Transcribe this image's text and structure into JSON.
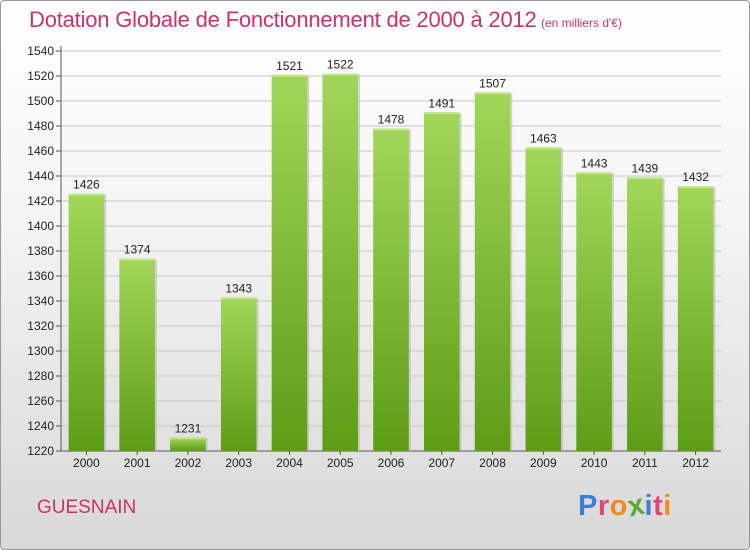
{
  "header": {
    "title": "Dotation Globale de Fonctionnement de 2000 à 2012",
    "unit": "(en milliers d'€)"
  },
  "footer": {
    "place": "GUESNAIN",
    "logo": {
      "letters": [
        "P",
        "r",
        "o",
        "x",
        "i",
        "t",
        "i"
      ],
      "colors": [
        "#3a7fd0",
        "#e0457a",
        "#f08a1c",
        "#59a830",
        "#3a7fd0",
        "#e0457a",
        "#f08a1c"
      ]
    }
  },
  "colors": {
    "text": "#d0306a",
    "bar_light": "#a2d65a",
    "bar_dark": "#5e9c16",
    "grid": "#c8c8c8"
  },
  "chart_data": {
    "type": "bar",
    "title": "Dotation Globale de Fonctionnement de 2000 à 2012",
    "subtitle": "(en milliers d'€)",
    "categories": [
      "2000",
      "2001",
      "2002",
      "2003",
      "2004",
      "2005",
      "2006",
      "2007",
      "2008",
      "2009",
      "2010",
      "2011",
      "2012"
    ],
    "values": [
      1426,
      1374,
      1231,
      1343,
      1521,
      1522,
      1478,
      1491,
      1507,
      1463,
      1443,
      1439,
      1432
    ],
    "ylim": [
      1220,
      1540
    ],
    "yticks": [
      1220,
      1240,
      1260,
      1280,
      1300,
      1320,
      1340,
      1360,
      1380,
      1400,
      1420,
      1440,
      1460,
      1480,
      1500,
      1520,
      1540
    ],
    "grid": true,
    "data_labels": true
  }
}
